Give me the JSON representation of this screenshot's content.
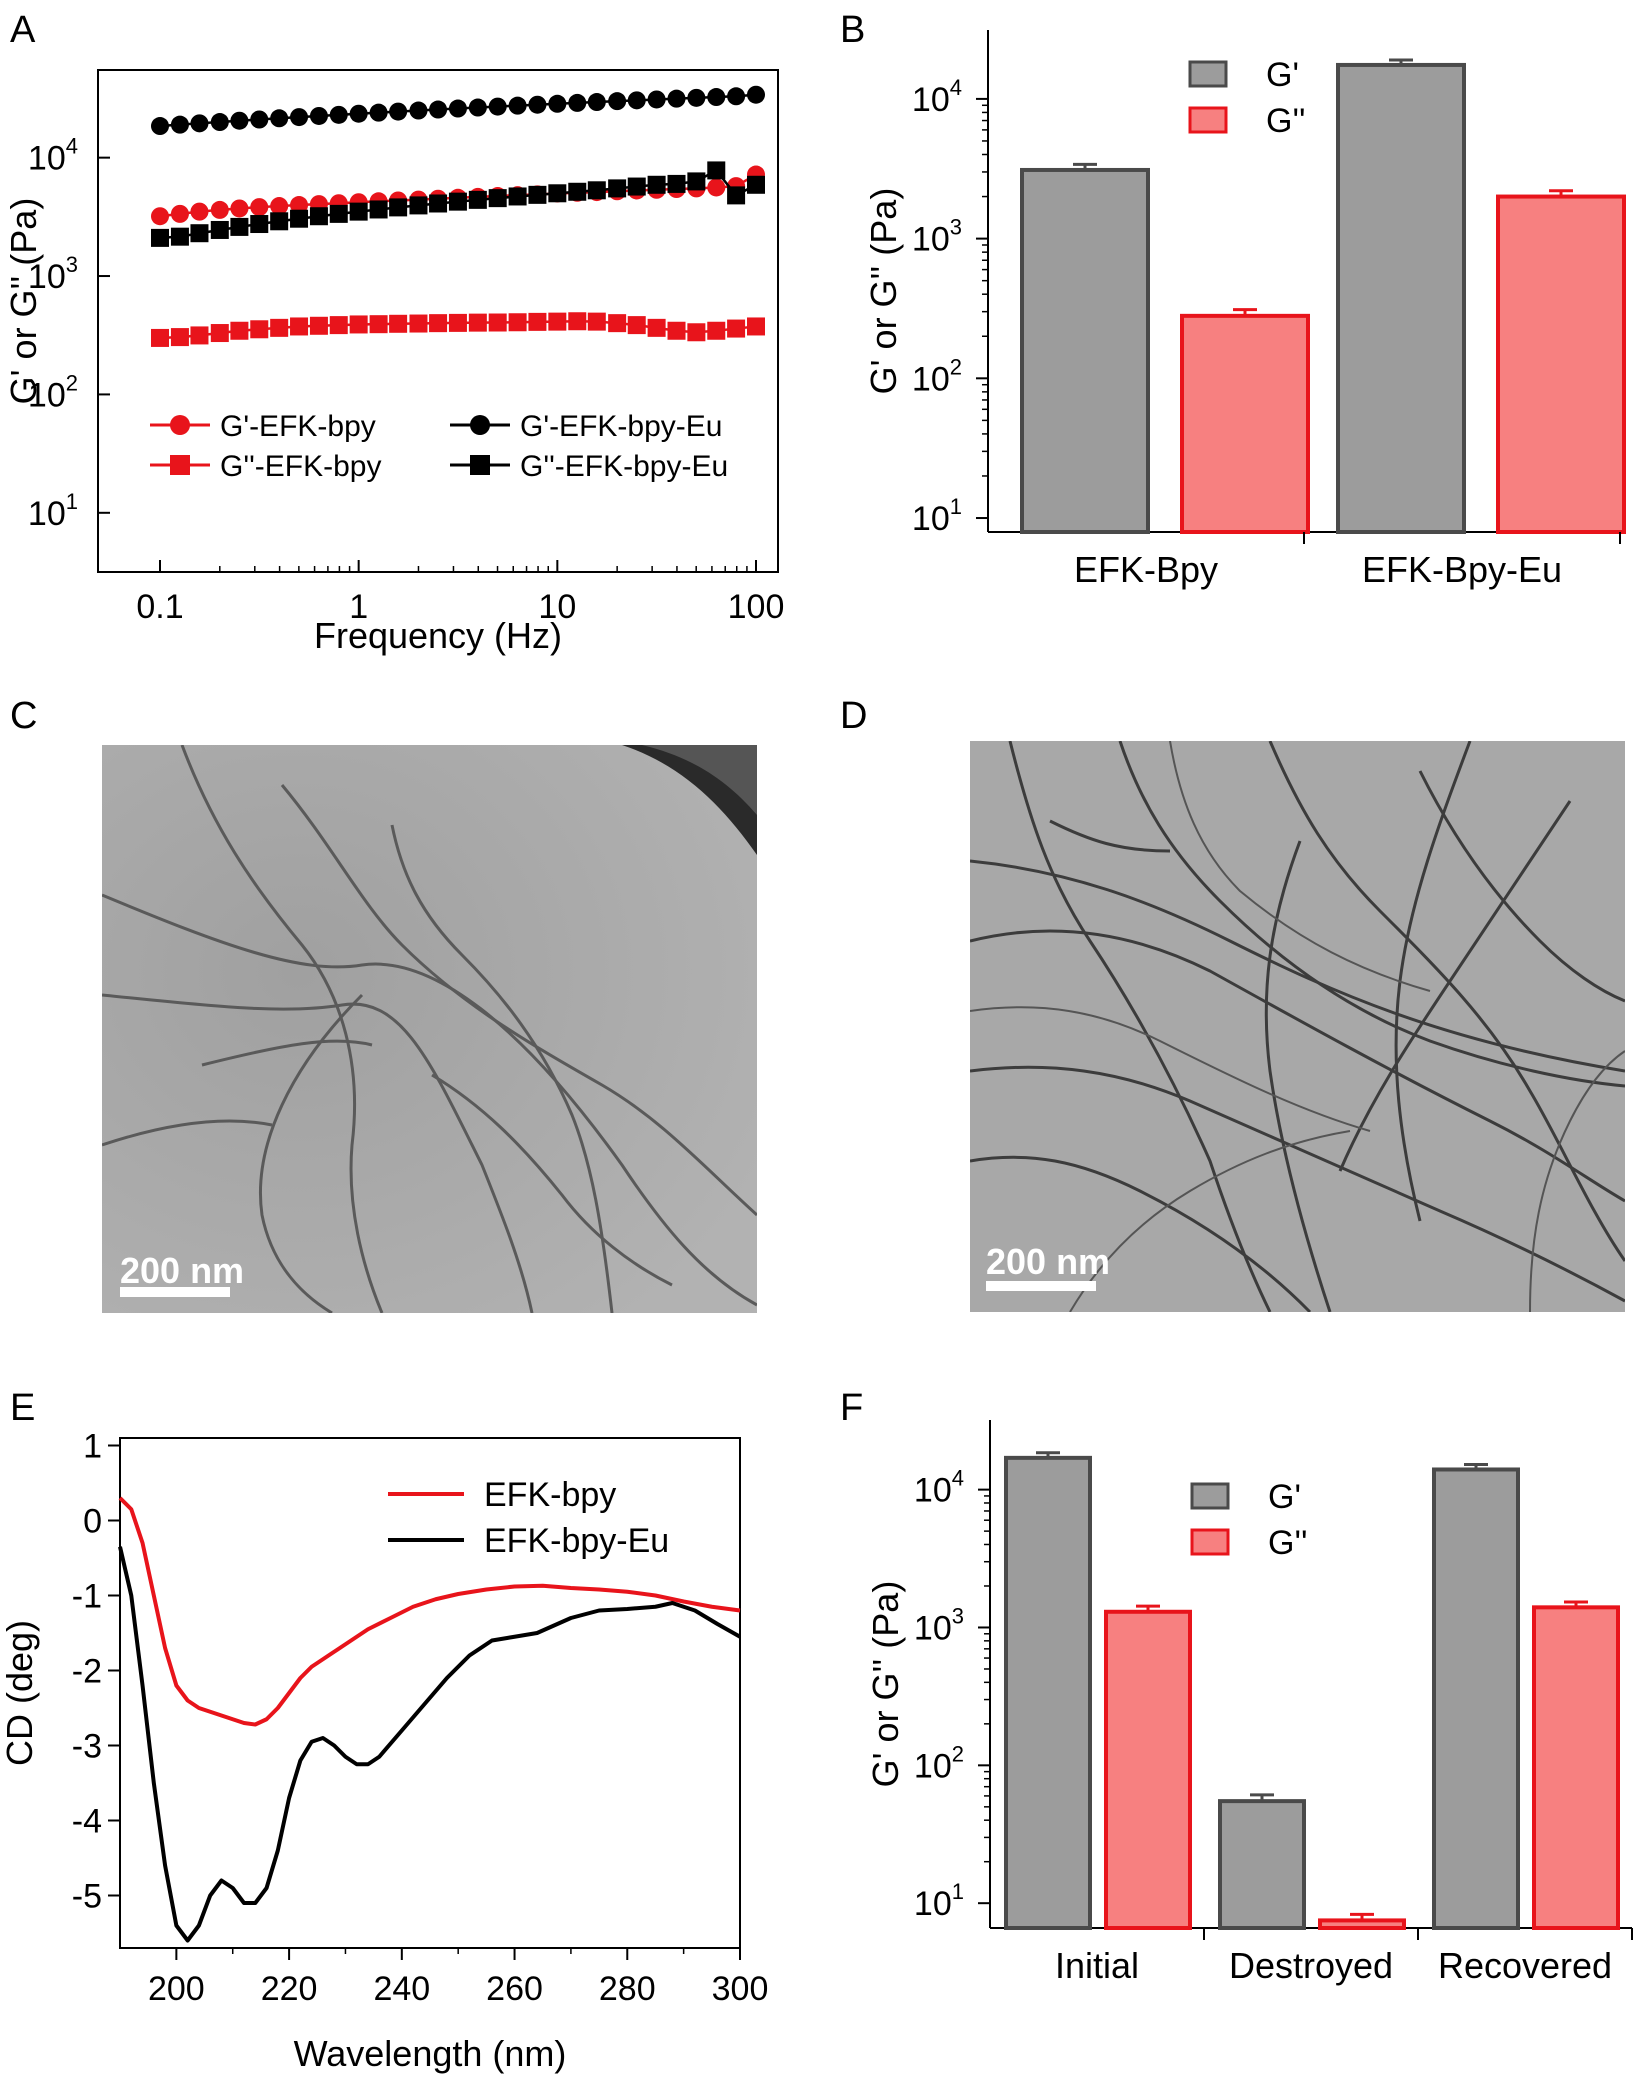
{
  "colors": {
    "red": "#e8141b",
    "black": "#000000",
    "gray_bar": "#9c9c9c",
    "gray_edge": "#4a4a4a",
    "pink_bar": "#f78080"
  },
  "panel_labels": [
    "A",
    "B",
    "C",
    "D",
    "E",
    "F"
  ],
  "chart_data": [
    {
      "panel": "A",
      "type": "scatter",
      "xscale": "log",
      "yscale": "log",
      "xlim": [
        0.1,
        100
      ],
      "ylim": [
        10,
        100000
      ],
      "xticks": [
        "0.1",
        "1",
        "10",
        "100"
      ],
      "yticks": [
        "10",
        "10",
        "10",
        "10"
      ],
      "ytick_exponents": [
        "1",
        "2",
        "3",
        "4"
      ],
      "xlabel": "Frequency (Hz)",
      "ylabel": "G' or G'' (Pa)",
      "legend": {
        "placement": "bottom",
        "columns": 2
      },
      "series": [
        {
          "name": "G'-EFK-bpy",
          "marker": "circle",
          "color": "#e8141b",
          "x": [
            0.1,
            0.126,
            0.158,
            0.2,
            0.251,
            0.316,
            0.398,
            0.501,
            0.631,
            0.794,
            1,
            1.26,
            1.58,
            2,
            2.51,
            3.16,
            3.98,
            5.01,
            6.31,
            7.94,
            10,
            12.6,
            15.8,
            20,
            25.1,
            31.6,
            39.8,
            50.1,
            63.1,
            79.4,
            100
          ],
          "y": [
            3200,
            3350,
            3500,
            3620,
            3720,
            3820,
            3900,
            3980,
            4050,
            4120,
            4200,
            4280,
            4350,
            4420,
            4500,
            4580,
            4660,
            4740,
            4820,
            4900,
            4980,
            5050,
            5120,
            5200,
            5280,
            5350,
            5430,
            5500,
            5600,
            5750,
            7200
          ]
        },
        {
          "name": "G''-EFK-bpy",
          "marker": "square",
          "color": "#e8141b",
          "x": [
            0.1,
            0.126,
            0.158,
            0.2,
            0.251,
            0.316,
            0.398,
            0.501,
            0.631,
            0.794,
            1,
            1.26,
            1.58,
            2,
            2.51,
            3.16,
            3.98,
            5.01,
            6.31,
            7.94,
            10,
            12.6,
            15.8,
            20,
            25.1,
            31.6,
            39.8,
            50.1,
            63.1,
            79.4,
            100
          ],
          "y": [
            300,
            305,
            315,
            330,
            345,
            355,
            365,
            375,
            380,
            385,
            390,
            392,
            395,
            397,
            400,
            402,
            404,
            405,
            407,
            410,
            412,
            415,
            412,
            400,
            385,
            365,
            345,
            335,
            345,
            360,
            375
          ]
        },
        {
          "name": "G'-EFK-bpy-Eu",
          "marker": "circle",
          "color": "#000000",
          "x": [
            0.1,
            0.126,
            0.158,
            0.2,
            0.251,
            0.316,
            0.398,
            0.501,
            0.631,
            0.794,
            1,
            1.26,
            1.58,
            2,
            2.51,
            3.16,
            3.98,
            5.01,
            6.31,
            7.94,
            10,
            12.6,
            15.8,
            20,
            25.1,
            31.6,
            39.8,
            50.1,
            63.1,
            79.4,
            100
          ],
          "y": [
            18500,
            19000,
            19500,
            20000,
            20500,
            21000,
            21500,
            22000,
            22500,
            23000,
            23500,
            24000,
            24500,
            25000,
            25500,
            26000,
            26500,
            27000,
            27500,
            28000,
            28500,
            29000,
            29500,
            30000,
            30500,
            31000,
            31500,
            32000,
            32500,
            33000,
            34000
          ]
        },
        {
          "name": "G''-EFK-bpy-Eu",
          "marker": "square",
          "color": "#000000",
          "x": [
            0.1,
            0.126,
            0.158,
            0.2,
            0.251,
            0.316,
            0.398,
            0.501,
            0.631,
            0.794,
            1,
            1.26,
            1.58,
            2,
            2.51,
            3.16,
            3.98,
            5.01,
            6.31,
            7.94,
            10,
            12.6,
            15.8,
            20,
            25.1,
            31.6,
            39.8,
            50.1,
            63.1,
            79.4,
            100
          ],
          "y": [
            2100,
            2150,
            2300,
            2450,
            2600,
            2750,
            2900,
            3050,
            3200,
            3350,
            3500,
            3650,
            3800,
            3950,
            4100,
            4250,
            4400,
            4550,
            4700,
            4850,
            5000,
            5150,
            5300,
            5500,
            5700,
            5900,
            6000,
            6300,
            7800,
            4800,
            5900
          ]
        }
      ]
    },
    {
      "panel": "B",
      "type": "bar",
      "yscale": "log",
      "ylim": [
        10,
        25000
      ],
      "yticks": [
        "10",
        "10",
        "10",
        "10"
      ],
      "ytick_exponents": [
        "1",
        "2",
        "3",
        "4"
      ],
      "ylabel": "G' or G'' (Pa)",
      "categories": [
        "EFK-Bpy",
        "EFK-Bpy-Eu"
      ],
      "legend": {
        "placement": "top-center"
      },
      "series": [
        {
          "name": "G'",
          "values": [
            3100,
            17500
          ],
          "errors": [
            300,
            1500
          ]
        },
        {
          "name": "G''",
          "values": [
            280,
            2000
          ],
          "errors": [
            30,
            200
          ]
        }
      ]
    },
    {
      "panel": "E",
      "type": "line",
      "xlim": [
        190,
        300
      ],
      "ylim": [
        -5.7,
        1.1
      ],
      "xticks": [
        "200",
        "220",
        "240",
        "260",
        "280",
        "300"
      ],
      "yticks": [
        "1",
        "0",
        "-1",
        "-2",
        "-3",
        "-4",
        "-5"
      ],
      "xlabel": "Wavelength (nm)",
      "ylabel": "CD (deg)",
      "legend": {
        "placement": "top-right"
      },
      "series": [
        {
          "name": "EFK-bpy",
          "color": "#e8141b",
          "x": [
            190,
            192,
            194,
            196,
            198,
            200,
            202,
            204,
            206,
            208,
            210,
            212,
            214,
            216,
            218,
            220,
            222,
            224,
            226,
            228,
            230,
            234,
            238,
            242,
            246,
            250,
            255,
            260,
            265,
            270,
            275,
            280,
            285,
            290,
            295,
            300
          ],
          "y": [
            0.3,
            0.15,
            -0.3,
            -1.0,
            -1.7,
            -2.2,
            -2.4,
            -2.5,
            -2.55,
            -2.6,
            -2.65,
            -2.7,
            -2.72,
            -2.65,
            -2.5,
            -2.3,
            -2.1,
            -1.95,
            -1.85,
            -1.75,
            -1.65,
            -1.45,
            -1.3,
            -1.15,
            -1.05,
            -0.98,
            -0.92,
            -0.88,
            -0.87,
            -0.9,
            -0.92,
            -0.95,
            -1.0,
            -1.08,
            -1.15,
            -1.2
          ]
        },
        {
          "name": "EFK-bpy-Eu",
          "color": "#000000",
          "x": [
            190,
            192,
            194,
            196,
            198,
            200,
            202,
            204,
            206,
            208,
            210,
            212,
            214,
            216,
            218,
            220,
            222,
            224,
            226,
            228,
            230,
            232,
            234,
            236,
            240,
            244,
            248,
            252,
            256,
            260,
            264,
            270,
            275,
            280,
            285,
            288,
            292,
            296,
            300
          ],
          "y": [
            -0.35,
            -1.0,
            -2.2,
            -3.5,
            -4.6,
            -5.4,
            -5.6,
            -5.4,
            -5.0,
            -4.8,
            -4.9,
            -5.1,
            -5.1,
            -4.9,
            -4.4,
            -3.7,
            -3.2,
            -2.95,
            -2.9,
            -3.0,
            -3.15,
            -3.25,
            -3.25,
            -3.15,
            -2.8,
            -2.45,
            -2.1,
            -1.8,
            -1.6,
            -1.55,
            -1.5,
            -1.3,
            -1.2,
            -1.18,
            -1.15,
            -1.1,
            -1.2,
            -1.38,
            -1.55
          ]
        }
      ]
    },
    {
      "panel": "F",
      "type": "bar",
      "yscale": "log",
      "ylim": [
        5,
        25000
      ],
      "yticks": [
        "10",
        "10",
        "10",
        "10"
      ],
      "ytick_exponents": [
        "1",
        "2",
        "3",
        "4"
      ],
      "ylabel": "G' or G'' (Pa)",
      "categories": [
        "Initial",
        "Destroyed",
        "Recovered"
      ],
      "legend": {
        "placement": "top-center"
      },
      "series": [
        {
          "name": "G'",
          "values": [
            17000,
            55,
            14000
          ],
          "errors": [
            1500,
            6,
            1200
          ]
        },
        {
          "name": "G''",
          "values": [
            1300,
            7.5,
            1400
          ],
          "errors": [
            130,
            0.8,
            130
          ]
        }
      ]
    }
  ],
  "tem": {
    "C": {
      "scalebar": "200 nm"
    },
    "D": {
      "scalebar": "200 nm"
    }
  }
}
